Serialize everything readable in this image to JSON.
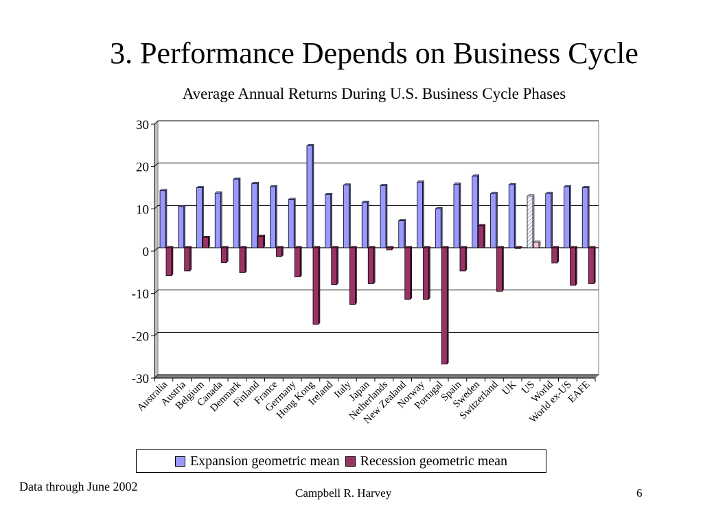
{
  "slide": {
    "title": "3. Performance Depends on Business Cycle",
    "footnote": "Data through June 2002",
    "author": "Campbell R. Harvey",
    "page_number": "6"
  },
  "chart_data": {
    "type": "bar",
    "title": "Average Annual Returns During U.S. Business Cycle Phases",
    "xlabel": "",
    "ylabel": "",
    "ylim": [
      -30,
      30
    ],
    "yticks": [
      30,
      20,
      10,
      0,
      -10,
      -20,
      -30
    ],
    "grid": true,
    "legend_position": "bottom",
    "categories": [
      "Australia",
      "Austria",
      "Belgium",
      "Canada",
      "Denmark",
      "Finland",
      "France",
      "Germany",
      "Hong Kong",
      "Ireland",
      "Italy",
      "Japan",
      "Netherlands",
      "New Zealand",
      "Norway",
      "Portugal",
      "Spain",
      "Sweden",
      "Switzerland",
      "UK",
      "US",
      "World",
      "World ex-US",
      "EAFE"
    ],
    "highlighted_category": "US",
    "series": [
      {
        "name": "Expansion geometric mean",
        "color": "#9999ff",
        "values": [
          13.5,
          9.7,
          14.2,
          12.9,
          16.2,
          15.2,
          14.4,
          11.4,
          24.1,
          12.6,
          14.8,
          10.7,
          14.7,
          6.4,
          15.5,
          9.2,
          15.0,
          16.9,
          12.8,
          14.9,
          12.2,
          12.8,
          14.4,
          14.2
        ]
      },
      {
        "name": "Recession geometric mean",
        "color": "#993366",
        "values": [
          -6.6,
          -5.5,
          2.4,
          -3.5,
          -5.9,
          2.7,
          -2.1,
          -6.9,
          -18.1,
          -8.7,
          -13.4,
          -8.5,
          -0.5,
          -12.2,
          -12.2,
          -27.5,
          -5.5,
          5.2,
          -10.3,
          -0.2,
          1.3,
          -3.6,
          -8.9,
          -8.5
        ]
      }
    ]
  }
}
